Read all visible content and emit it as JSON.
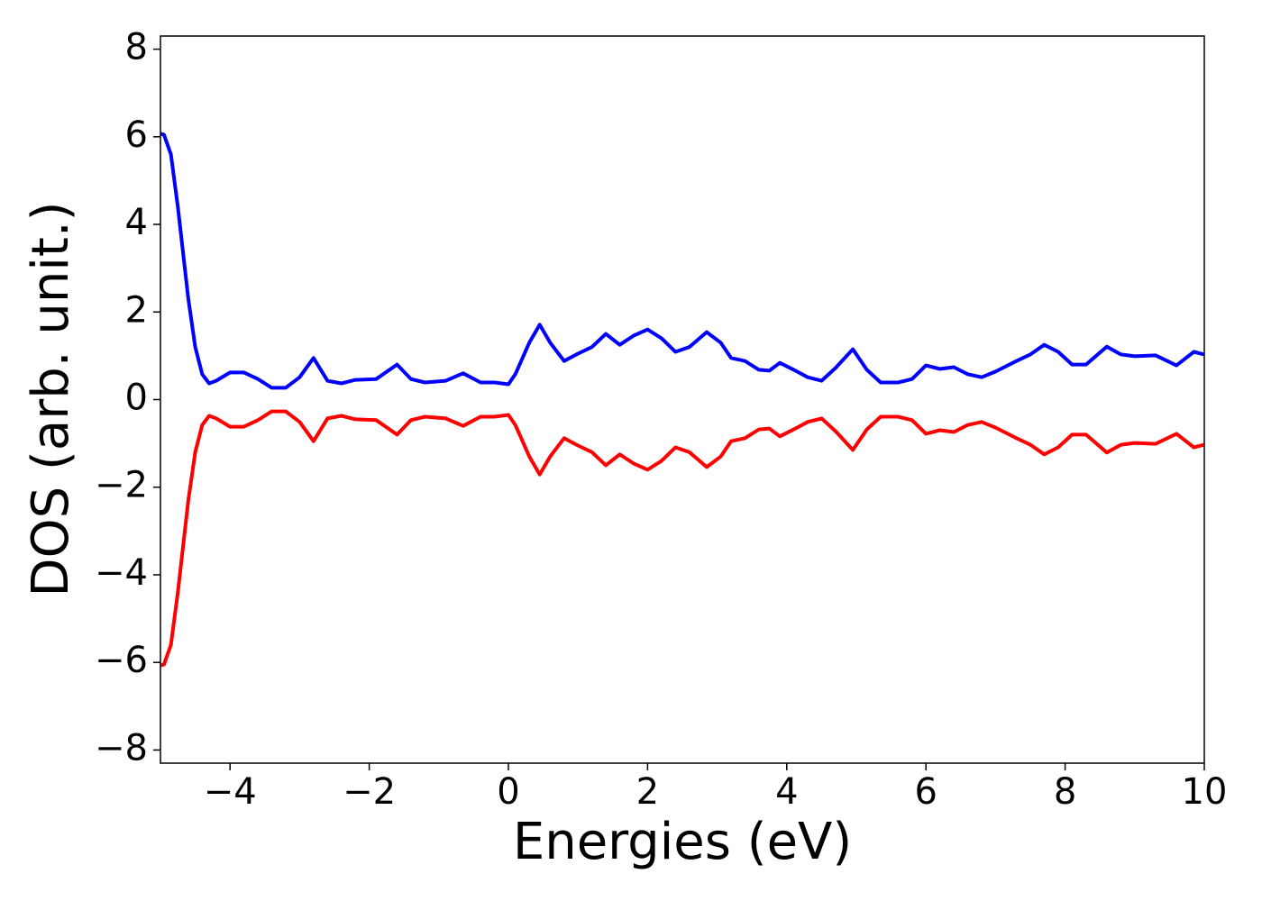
{
  "chart_data": {
    "type": "line",
    "xlabel": "Energies (eV)",
    "ylabel": "DOS (arb. unit.)",
    "x": [
      -5,
      -4.95,
      -4.85,
      -4.75,
      -4.6,
      -4.5,
      -4.4,
      -4.3,
      -4.2,
      -4.0,
      -3.8,
      -3.6,
      -3.4,
      -3.2,
      -3.0,
      -2.8,
      -2.6,
      -2.4,
      -2.2,
      -1.9,
      -1.6,
      -1.4,
      -1.2,
      -0.9,
      -0.65,
      -0.4,
      -0.2,
      0.0,
      0.1,
      0.3,
      0.45,
      0.6,
      0.8,
      1.0,
      1.2,
      1.4,
      1.6,
      1.8,
      2.0,
      2.2,
      2.4,
      2.6,
      2.85,
      3.05,
      3.2,
      3.4,
      3.6,
      3.75,
      3.9,
      4.1,
      4.3,
      4.5,
      4.7,
      4.95,
      5.15,
      5.35,
      5.6,
      5.8,
      6.0,
      6.2,
      6.4,
      6.6,
      6.8,
      7.0,
      7.3,
      7.5,
      7.7,
      7.9,
      8.1,
      8.3,
      8.6,
      8.8,
      9.0,
      9.3,
      9.6,
      9.85,
      10
    ],
    "series": [
      {
        "color": "#0000ff",
        "values": [
          6.07,
          6.05,
          5.6,
          4.4,
          2.3,
          1.2,
          0.58,
          0.37,
          0.43,
          0.62,
          0.62,
          0.47,
          0.27,
          0.27,
          0.51,
          0.95,
          0.43,
          0.37,
          0.45,
          0.47,
          0.8,
          0.47,
          0.39,
          0.43,
          0.6,
          0.39,
          0.39,
          0.35,
          0.58,
          1.3,
          1.71,
          1.3,
          0.88,
          1.05,
          1.2,
          1.5,
          1.25,
          1.46,
          1.6,
          1.4,
          1.09,
          1.2,
          1.54,
          1.3,
          0.95,
          0.88,
          0.68,
          0.66,
          0.84,
          0.68,
          0.51,
          0.43,
          0.72,
          1.15,
          0.68,
          0.39,
          0.39,
          0.47,
          0.78,
          0.7,
          0.74,
          0.58,
          0.51,
          0.64,
          0.88,
          1.03,
          1.25,
          1.09,
          0.8,
          0.8,
          1.21,
          1.03,
          0.99,
          1.01,
          0.78,
          1.09,
          1.03
        ]
      },
      {
        "color": "#ff0000",
        "values": [
          -6.07,
          -6.05,
          -5.6,
          -4.4,
          -2.3,
          -1.2,
          -0.58,
          -0.37,
          -0.43,
          -0.62,
          -0.62,
          -0.47,
          -0.27,
          -0.27,
          -0.51,
          -0.95,
          -0.43,
          -0.37,
          -0.45,
          -0.47,
          -0.8,
          -0.47,
          -0.39,
          -0.43,
          -0.6,
          -0.39,
          -0.39,
          -0.35,
          -0.58,
          -1.3,
          -1.71,
          -1.3,
          -0.88,
          -1.05,
          -1.2,
          -1.5,
          -1.25,
          -1.46,
          -1.6,
          -1.4,
          -1.09,
          -1.2,
          -1.54,
          -1.3,
          -0.95,
          -0.88,
          -0.68,
          -0.66,
          -0.84,
          -0.68,
          -0.51,
          -0.43,
          -0.72,
          -1.15,
          -0.68,
          -0.39,
          -0.39,
          -0.47,
          -0.78,
          -0.7,
          -0.74,
          -0.58,
          -0.51,
          -0.64,
          -0.88,
          -1.03,
          -1.25,
          -1.09,
          -0.8,
          -0.8,
          -1.21,
          -1.03,
          -0.99,
          -1.01,
          -0.78,
          -1.09,
          -1.03
        ]
      }
    ],
    "xlim": [
      -5,
      10
    ],
    "xticks": [
      {
        "value": -4,
        "label": "−4"
      },
      {
        "value": -2,
        "label": "−2"
      },
      0,
      2,
      4,
      6,
      8,
      10
    ],
    "ylim": [
      -8.3,
      8.3
    ],
    "yticks": [
      {
        "value": -8,
        "label": "−8"
      },
      {
        "value": -6,
        "label": "−6"
      },
      {
        "value": -4,
        "label": "−4"
      },
      {
        "value": -2,
        "label": "−2"
      },
      0,
      2,
      4,
      6,
      8
    ],
    "grid": false
  }
}
